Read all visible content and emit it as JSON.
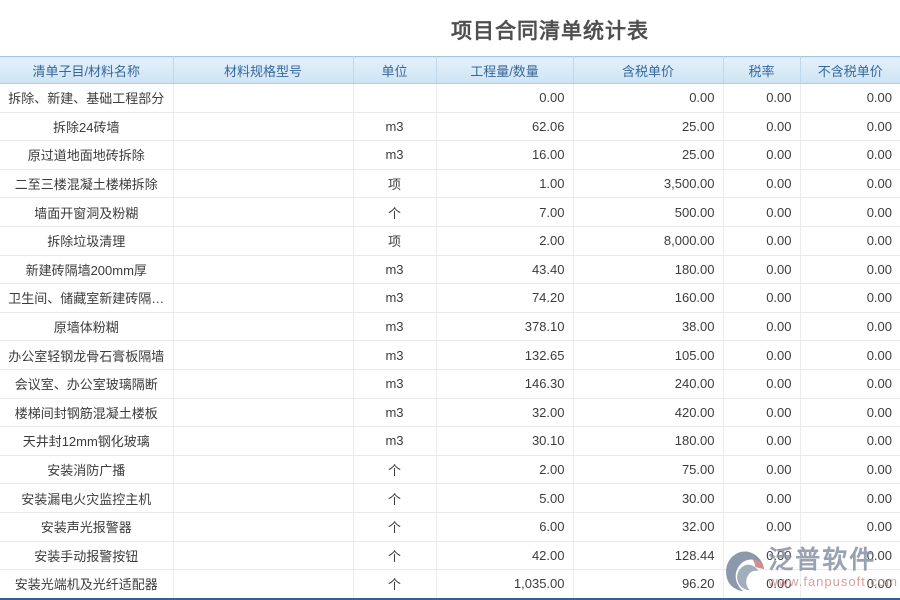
{
  "page": {
    "title": "项目合同清单统计表"
  },
  "table": {
    "columns": [
      {
        "key": "name",
        "label": "清单子目/材料名称"
      },
      {
        "key": "spec",
        "label": "材料规格型号"
      },
      {
        "key": "unit",
        "label": "单位"
      },
      {
        "key": "qty",
        "label": "工程量/数量"
      },
      {
        "key": "price_tax",
        "label": "含税单价"
      },
      {
        "key": "tax_rate",
        "label": "税率"
      },
      {
        "key": "price_no_tax",
        "label": "不含税单价"
      }
    ],
    "rows": [
      {
        "name": "拆除、新建、基础工程部分",
        "spec": "",
        "unit": "",
        "qty": "0.00",
        "price_tax": "0.00",
        "tax_rate": "0.00",
        "price_no_tax": "0.00"
      },
      {
        "name": "拆除24砖墙",
        "spec": "",
        "unit": "m3",
        "qty": "62.06",
        "price_tax": "25.00",
        "tax_rate": "0.00",
        "price_no_tax": "0.00"
      },
      {
        "name": "原过道地面地砖拆除",
        "spec": "",
        "unit": "m3",
        "qty": "16.00",
        "price_tax": "25.00",
        "tax_rate": "0.00",
        "price_no_tax": "0.00"
      },
      {
        "name": "二至三楼混凝土楼梯拆除",
        "spec": "",
        "unit": "项",
        "qty": "1.00",
        "price_tax": "3,500.00",
        "tax_rate": "0.00",
        "price_no_tax": "0.00"
      },
      {
        "name": "墙面开窗洞及粉糊",
        "spec": "",
        "unit": "个",
        "qty": "7.00",
        "price_tax": "500.00",
        "tax_rate": "0.00",
        "price_no_tax": "0.00"
      },
      {
        "name": "拆除垃圾清理",
        "spec": "",
        "unit": "项",
        "qty": "2.00",
        "price_tax": "8,000.00",
        "tax_rate": "0.00",
        "price_no_tax": "0.00"
      },
      {
        "name": "新建砖隔墙200mm厚",
        "spec": "",
        "unit": "m3",
        "qty": "43.40",
        "price_tax": "180.00",
        "tax_rate": "0.00",
        "price_no_tax": "0.00"
      },
      {
        "name": "卫生间、储藏室新建砖隔…",
        "spec": "",
        "unit": "m3",
        "qty": "74.20",
        "price_tax": "160.00",
        "tax_rate": "0.00",
        "price_no_tax": "0.00"
      },
      {
        "name": "原墙体粉糊",
        "spec": "",
        "unit": "m3",
        "qty": "378.10",
        "price_tax": "38.00",
        "tax_rate": "0.00",
        "price_no_tax": "0.00"
      },
      {
        "name": "办公室轻钢龙骨石膏板隔墙",
        "spec": "",
        "unit": "m3",
        "qty": "132.65",
        "price_tax": "105.00",
        "tax_rate": "0.00",
        "price_no_tax": "0.00"
      },
      {
        "name": "会议室、办公室玻璃隔断",
        "spec": "",
        "unit": "m3",
        "qty": "146.30",
        "price_tax": "240.00",
        "tax_rate": "0.00",
        "price_no_tax": "0.00"
      },
      {
        "name": "楼梯间封钢筋混凝土楼板",
        "spec": "",
        "unit": "m3",
        "qty": "32.00",
        "price_tax": "420.00",
        "tax_rate": "0.00",
        "price_no_tax": "0.00"
      },
      {
        "name": "天井封12mm钢化玻璃",
        "spec": "",
        "unit": "m3",
        "qty": "30.10",
        "price_tax": "180.00",
        "tax_rate": "0.00",
        "price_no_tax": "0.00"
      },
      {
        "name": "安装消防广播",
        "spec": "",
        "unit": "个",
        "qty": "2.00",
        "price_tax": "75.00",
        "tax_rate": "0.00",
        "price_no_tax": "0.00"
      },
      {
        "name": "安装漏电火灾监控主机",
        "spec": "",
        "unit": "个",
        "qty": "5.00",
        "price_tax": "30.00",
        "tax_rate": "0.00",
        "price_no_tax": "0.00"
      },
      {
        "name": "安装声光报警器",
        "spec": "",
        "unit": "个",
        "qty": "6.00",
        "price_tax": "32.00",
        "tax_rate": "0.00",
        "price_no_tax": "0.00"
      },
      {
        "name": "安装手动报警按钮",
        "spec": "",
        "unit": "个",
        "qty": "42.00",
        "price_tax": "128.44",
        "tax_rate": "0.00",
        "price_no_tax": "0.00"
      },
      {
        "name": "安装光端机及光纤适配器",
        "spec": "",
        "unit": "个",
        "qty": "1,035.00",
        "price_tax": "96.20",
        "tax_rate": "0.00",
        "price_no_tax": "0.00"
      }
    ]
  },
  "watermark": {
    "brand": "泛普软件",
    "url": "www.fanpusoft.com"
  },
  "colors": {
    "header_text": "#36689b",
    "header_bg_top": "#e3f1fb",
    "header_bg_bottom": "#cfe3f3",
    "bottom_edge": "#2f6398",
    "watermark_brand": "#8b96a9",
    "watermark_url": "#d98f8f"
  }
}
